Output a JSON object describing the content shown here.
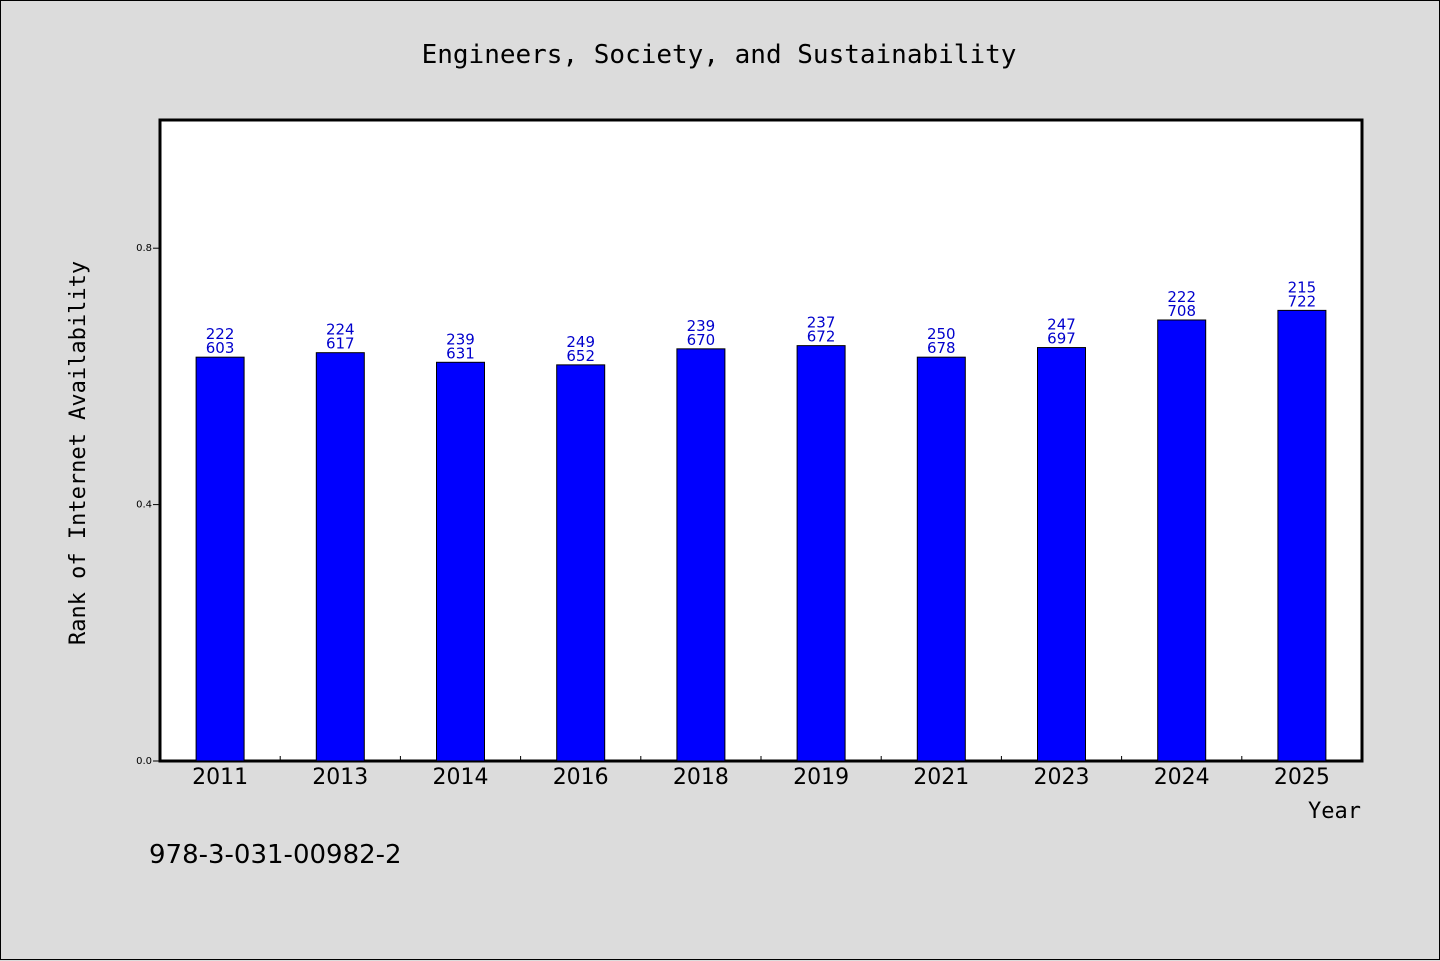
{
  "chart_data": {
    "type": "bar",
    "title": "Engineers, Society, and Sustainability",
    "xlabel": "Year",
    "ylabel": "Rank of Internet Availability",
    "categories": [
      "2011",
      "2013",
      "2014",
      "2016",
      "2018",
      "2019",
      "2021",
      "2023",
      "2024",
      "2025"
    ],
    "values": [
      0.63,
      0.637,
      0.622,
      0.618,
      0.643,
      0.648,
      0.63,
      0.645,
      0.688,
      0.703
    ],
    "data_labels": [
      [
        "222",
        "603"
      ],
      [
        "224",
        "617"
      ],
      [
        "239",
        "631"
      ],
      [
        "249",
        "652"
      ],
      [
        "239",
        "670"
      ],
      [
        "237",
        "672"
      ],
      [
        "250",
        "678"
      ],
      [
        "247",
        "697"
      ],
      [
        "222",
        "708"
      ],
      [
        "215",
        "722"
      ]
    ],
    "yticks": [
      "0.0",
      "0.4",
      "0.8"
    ],
    "ytick_values": [
      0.0,
      0.4,
      0.8
    ],
    "ylim": [
      0,
      1.0
    ],
    "grid": false,
    "bar_color": "#0000ff",
    "label_color": "#0000cc"
  },
  "footer": {
    "isbn": "978-3-031-00982-2"
  }
}
